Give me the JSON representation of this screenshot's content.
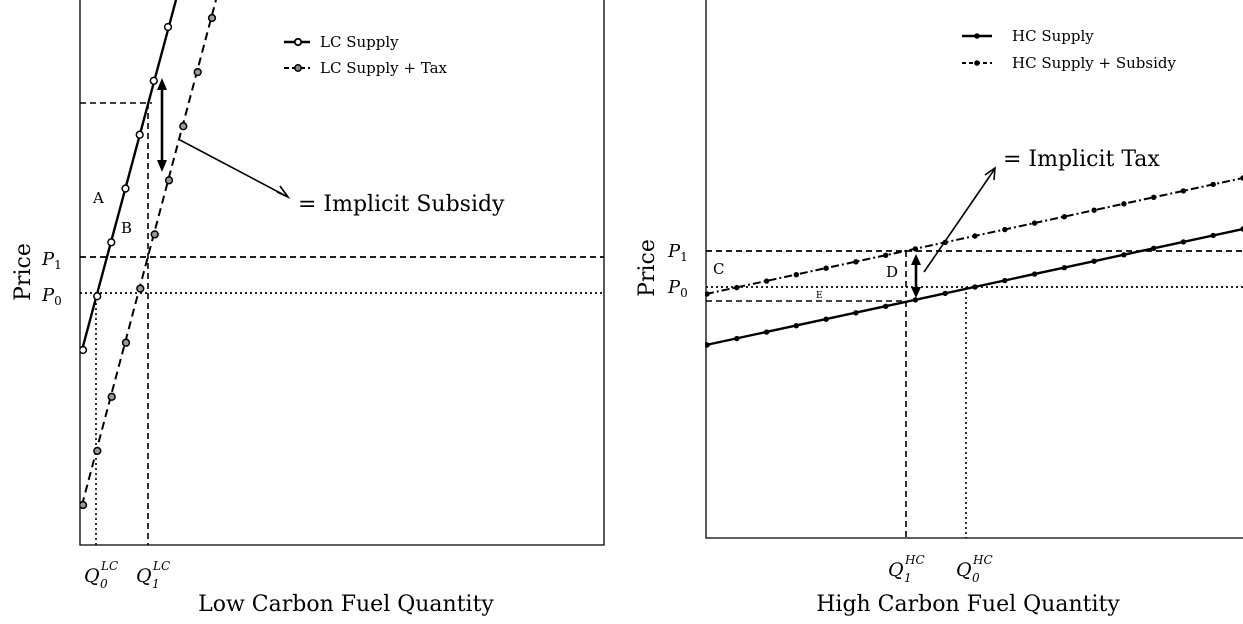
{
  "left": {
    "xlabel": "Low Carbon Fuel Quantity",
    "ylabel": "Price",
    "legend": [
      "LC Supply",
      "LC Supply + Tax"
    ],
    "annotation": "= Implicit Subsidy",
    "region_labels": [
      "A",
      "B"
    ],
    "y_ticks": [
      {
        "base": "P",
        "sub": "1"
      },
      {
        "base": "P",
        "sub": "0"
      }
    ],
    "x_ticks": [
      {
        "base": "Q",
        "sub": "0",
        "sup": "LC"
      },
      {
        "base": "Q",
        "sub": "1",
        "sup": "LC"
      }
    ]
  },
  "right": {
    "xlabel": "High Carbon Fuel Quantity",
    "ylabel": "Price",
    "legend": [
      "HC Supply",
      "HC Supply + Subsidy"
    ],
    "annotation": "= Implicit Tax",
    "region_labels": [
      "C",
      "D",
      "E"
    ],
    "y_ticks": [
      {
        "base": "P",
        "sub": "1"
      },
      {
        "base": "P",
        "sub": "0"
      }
    ],
    "x_ticks": [
      {
        "base": "Q",
        "sub": "1",
        "sup": "HC"
      },
      {
        "base": "Q",
        "sub": "0",
        "sup": "HC"
      }
    ]
  }
}
